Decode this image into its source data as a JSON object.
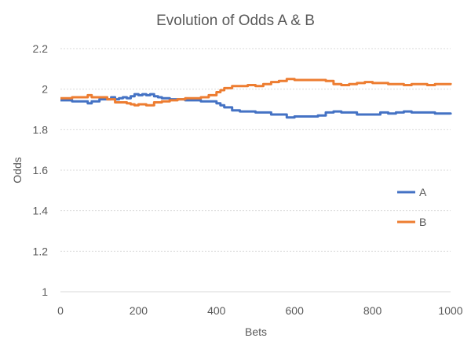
{
  "chart_data": {
    "type": "line",
    "title": "Evolution of Odds A & B",
    "xlabel": "Bets",
    "ylabel": "Odds",
    "xlim": [
      0,
      1000
    ],
    "ylim": [
      1,
      2.2
    ],
    "x_ticks": [
      0,
      200,
      400,
      600,
      800,
      1000
    ],
    "y_ticks": [
      1,
      1.2,
      1.4,
      1.6,
      1.8,
      2,
      2.2
    ],
    "x_tick_labels": [
      "0",
      "200",
      "400",
      "600",
      "800",
      "1000"
    ],
    "y_tick_labels": [
      "1",
      "1.2",
      "1.4",
      "1.6",
      "1.8",
      "2",
      "2.2"
    ],
    "grid": "horizontal dotted",
    "legend_position": "right",
    "series": [
      {
        "name": "A",
        "color": "#4472C4",
        "x": [
          0,
          30,
          60,
          70,
          80,
          100,
          120,
          130,
          140,
          150,
          160,
          170,
          180,
          190,
          200,
          210,
          220,
          230,
          240,
          250,
          260,
          280,
          300,
          320,
          340,
          360,
          380,
          400,
          410,
          420,
          440,
          460,
          480,
          500,
          520,
          540,
          560,
          580,
          600,
          620,
          640,
          660,
          680,
          700,
          720,
          740,
          760,
          780,
          800,
          820,
          840,
          860,
          880,
          900,
          920,
          940,
          960,
          980,
          1000
        ],
        "y": [
          1.945,
          1.94,
          1.94,
          1.93,
          1.94,
          1.95,
          1.95,
          1.96,
          1.95,
          1.955,
          1.96,
          1.955,
          1.965,
          1.975,
          1.97,
          1.975,
          1.97,
          1.975,
          1.965,
          1.96,
          1.955,
          1.95,
          1.95,
          1.945,
          1.945,
          1.94,
          1.94,
          1.93,
          1.92,
          1.91,
          1.895,
          1.89,
          1.89,
          1.885,
          1.885,
          1.875,
          1.875,
          1.86,
          1.865,
          1.865,
          1.865,
          1.87,
          1.885,
          1.89,
          1.885,
          1.885,
          1.875,
          1.875,
          1.875,
          1.885,
          1.88,
          1.885,
          1.89,
          1.885,
          1.885,
          1.885,
          1.88,
          1.88,
          1.875
        ]
      },
      {
        "name": "B",
        "color": "#ED7D31",
        "x": [
          0,
          30,
          60,
          70,
          80,
          100,
          120,
          140,
          160,
          170,
          180,
          190,
          200,
          220,
          240,
          260,
          280,
          300,
          320,
          340,
          360,
          380,
          400,
          410,
          420,
          440,
          460,
          480,
          500,
          520,
          540,
          560,
          580,
          600,
          620,
          640,
          660,
          680,
          700,
          720,
          740,
          760,
          780,
          800,
          820,
          840,
          860,
          880,
          900,
          920,
          940,
          960,
          980,
          1000
        ],
        "y": [
          1.955,
          1.96,
          1.96,
          1.97,
          1.96,
          1.96,
          1.95,
          1.935,
          1.935,
          1.93,
          1.925,
          1.92,
          1.925,
          1.92,
          1.935,
          1.94,
          1.945,
          1.95,
          1.955,
          1.955,
          1.96,
          1.97,
          1.985,
          1.995,
          2.005,
          2.015,
          2.015,
          2.02,
          2.015,
          2.025,
          2.035,
          2.04,
          2.05,
          2.045,
          2.045,
          2.045,
          2.045,
          2.04,
          2.025,
          2.02,
          2.025,
          2.03,
          2.035,
          2.03,
          2.03,
          2.025,
          2.025,
          2.02,
          2.025,
          2.025,
          2.02,
          2.025,
          2.025,
          2.03
        ]
      }
    ]
  }
}
